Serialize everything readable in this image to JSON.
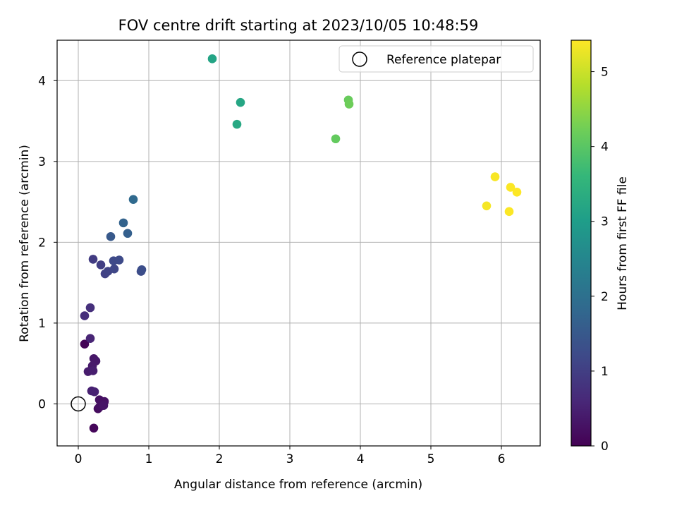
{
  "chart_data": {
    "type": "scatter",
    "title": "FOV centre drift starting at 2023/10/05 10:48:59",
    "xlabel": "Angular distance from reference (arcmin)",
    "ylabel": "Rotation from reference (arcmin)",
    "xlim": [
      -0.3,
      6.55
    ],
    "ylim": [
      -0.52,
      4.5
    ],
    "xticks": [
      0,
      1,
      2,
      3,
      4,
      5,
      6
    ],
    "yticks": [
      0,
      1,
      2,
      3,
      4
    ],
    "grid": true,
    "legend": {
      "position": "top-right",
      "entries": [
        {
          "label": "Reference platepar",
          "marker": "open-circle"
        }
      ]
    },
    "reference_point": {
      "x": 0,
      "y": 0
    },
    "colorbar": {
      "label": "Hours from first FF file",
      "range": [
        0,
        5.42
      ],
      "ticks": [
        0,
        1,
        2,
        3,
        4,
        5
      ],
      "colormap": "viridis"
    },
    "points": [
      {
        "x": 0.09,
        "y": 0.74,
        "c": 0.05
      },
      {
        "x": 0.22,
        "y": -0.3,
        "c": 0.1
      },
      {
        "x": 0.28,
        "y": -0.06,
        "c": 0.15
      },
      {
        "x": 0.3,
        "y": -0.04,
        "c": 0.2
      },
      {
        "x": 0.3,
        "y": 0.05,
        "c": 0.22
      },
      {
        "x": 0.37,
        "y": 0.03,
        "c": 0.25
      },
      {
        "x": 0.36,
        "y": -0.02,
        "c": 0.3
      },
      {
        "x": 0.22,
        "y": 0.56,
        "c": 0.32
      },
      {
        "x": 0.25,
        "y": 0.53,
        "c": 0.35
      },
      {
        "x": 0.2,
        "y": 0.47,
        "c": 0.38
      },
      {
        "x": 0.14,
        "y": 0.4,
        "c": 0.42
      },
      {
        "x": 0.21,
        "y": 0.41,
        "c": 0.45
      },
      {
        "x": 0.19,
        "y": 0.16,
        "c": 0.48
      },
      {
        "x": 0.23,
        "y": 0.15,
        "c": 0.5
      },
      {
        "x": 0.17,
        "y": 0.81,
        "c": 0.55
      },
      {
        "x": 0.09,
        "y": 1.09,
        "c": 0.7
      },
      {
        "x": 0.17,
        "y": 1.19,
        "c": 0.75
      },
      {
        "x": 0.21,
        "y": 1.79,
        "c": 0.95
      },
      {
        "x": 0.32,
        "y": 1.72,
        "c": 1.0
      },
      {
        "x": 0.38,
        "y": 1.61,
        "c": 1.05
      },
      {
        "x": 0.42,
        "y": 1.64,
        "c": 1.08
      },
      {
        "x": 0.51,
        "y": 1.67,
        "c": 1.15
      },
      {
        "x": 0.5,
        "y": 1.77,
        "c": 1.2
      },
      {
        "x": 0.58,
        "y": 1.78,
        "c": 1.22
      },
      {
        "x": 0.89,
        "y": 1.64,
        "c": 1.25
      },
      {
        "x": 0.9,
        "y": 1.66,
        "c": 1.28
      },
      {
        "x": 0.46,
        "y": 2.07,
        "c": 1.5
      },
      {
        "x": 0.7,
        "y": 2.11,
        "c": 1.65
      },
      {
        "x": 0.64,
        "y": 2.24,
        "c": 1.7
      },
      {
        "x": 0.78,
        "y": 2.53,
        "c": 1.85
      },
      {
        "x": 1.9,
        "y": 4.27,
        "c": 3.15
      },
      {
        "x": 2.3,
        "y": 3.73,
        "c": 3.2
      },
      {
        "x": 2.25,
        "y": 3.46,
        "c": 3.25
      },
      {
        "x": 3.65,
        "y": 3.28,
        "c": 4.1
      },
      {
        "x": 3.83,
        "y": 3.76,
        "c": 4.15
      },
      {
        "x": 3.84,
        "y": 3.71,
        "c": 4.2
      },
      {
        "x": 5.79,
        "y": 2.45,
        "c": 5.35
      },
      {
        "x": 5.91,
        "y": 2.81,
        "c": 5.38
      },
      {
        "x": 6.13,
        "y": 2.68,
        "c": 5.4
      },
      {
        "x": 6.11,
        "y": 2.38,
        "c": 5.4
      },
      {
        "x": 6.22,
        "y": 2.62,
        "c": 5.42
      }
    ]
  }
}
